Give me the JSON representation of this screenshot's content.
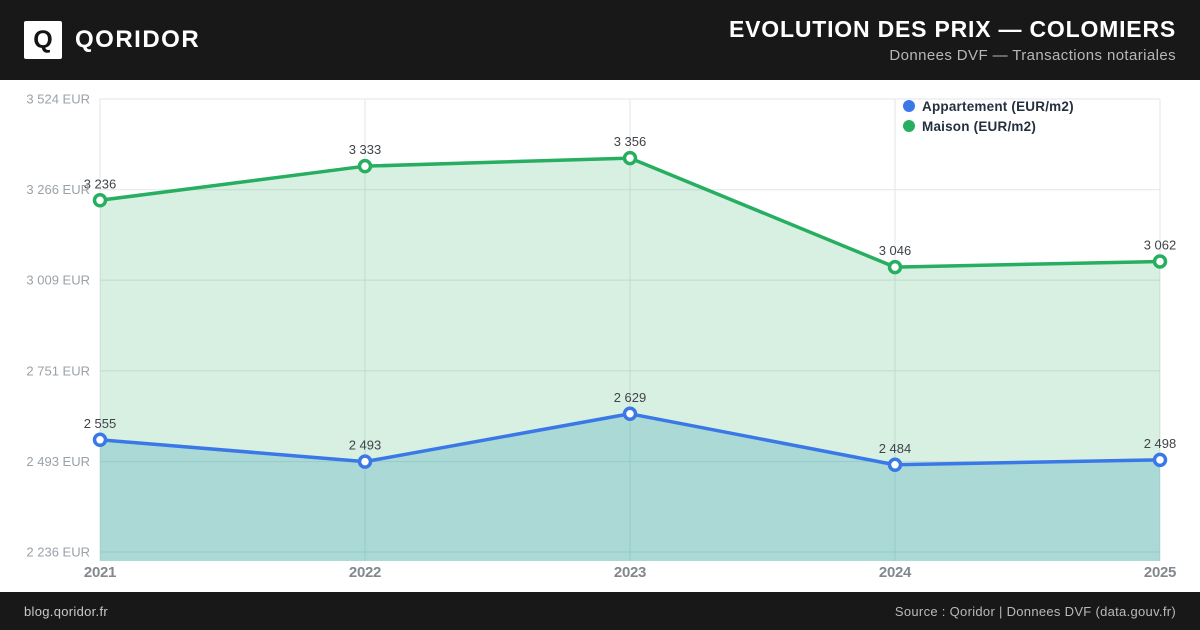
{
  "header": {
    "brand": "QORIDOR",
    "logo_letter": "Q",
    "title": "EVOLUTION DES PRIX — COLOMIERS",
    "subtitle": "Donnees DVF — Transactions notariales"
  },
  "footer": {
    "left": "blog.qoridor.fr",
    "right": "Source : Qoridor | Donnees DVF (data.gouv.fr)"
  },
  "colors": {
    "header_bg": "#181818",
    "appartement": "#3b78e7",
    "maison": "#27ae60",
    "maison_area_fill": "rgba(39,174,96,0.18)",
    "appartement_area_fill": "rgba(67,165,184,0.30)",
    "grid": "#e3e5e7",
    "axis_tick_text": "#9aa2a8",
    "x_tick_text": "#82888d",
    "point_label_text": "#3f4449",
    "legend_text": "#24303f"
  },
  "chart_data": {
    "type": "line",
    "x": [
      "2021",
      "2022",
      "2023",
      "2024",
      "2025"
    ],
    "series": [
      {
        "name": "Appartement (EUR/m2)",
        "values": [
          2555,
          2493,
          2629,
          2484,
          2498
        ],
        "color_key": "appartement",
        "fill_key": "appartement_area_fill"
      },
      {
        "name": "Maison (EUR/m2)",
        "values": [
          3236,
          3333,
          3356,
          3046,
          3062
        ],
        "color_key": "maison",
        "fill_key": "maison_area_fill"
      }
    ],
    "y_ticks": [
      3524,
      3266,
      3009,
      2751,
      2493,
      2236
    ],
    "y_tick_suffix": " EUR",
    "ylim": [
      2210,
      3524
    ],
    "grid": true,
    "legend_position": "top-right",
    "area": true
  }
}
